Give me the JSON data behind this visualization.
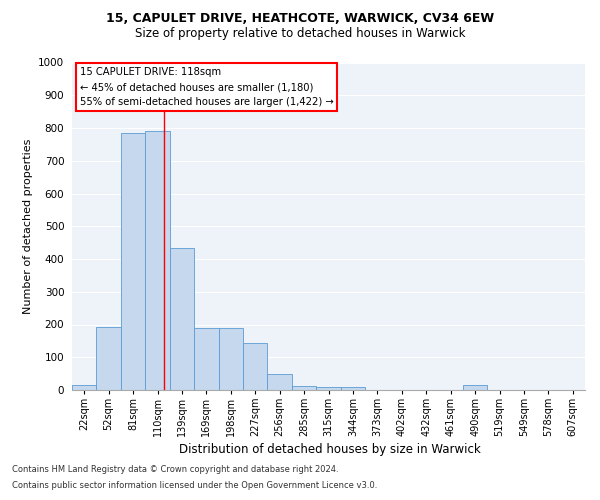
{
  "title_line1": "15, CAPULET DRIVE, HEATHCOTE, WARWICK, CV34 6EW",
  "title_line2": "Size of property relative to detached houses in Warwick",
  "xlabel": "Distribution of detached houses by size in Warwick",
  "ylabel": "Number of detached properties",
  "bar_color": "#c5d8ed",
  "bar_edge_color": "#5b9bd5",
  "categories": [
    "22sqm",
    "52sqm",
    "81sqm",
    "110sqm",
    "139sqm",
    "169sqm",
    "198sqm",
    "227sqm",
    "256sqm",
    "285sqm",
    "315sqm",
    "344sqm",
    "373sqm",
    "402sqm",
    "432sqm",
    "461sqm",
    "490sqm",
    "519sqm",
    "549sqm",
    "578sqm",
    "607sqm"
  ],
  "values": [
    15,
    193,
    785,
    790,
    435,
    190,
    190,
    143,
    48,
    13,
    10,
    10,
    0,
    0,
    0,
    0,
    15,
    0,
    0,
    0,
    0
  ],
  "ylim": [
    0,
    1000
  ],
  "yticks": [
    0,
    100,
    200,
    300,
    400,
    500,
    600,
    700,
    800,
    900,
    1000
  ],
  "annotation_title": "15 CAPULET DRIVE: 118sqm",
  "annotation_line1": "← 45% of detached houses are smaller (1,180)",
  "annotation_line2": "55% of semi-detached houses are larger (1,422) →",
  "footer_line1": "Contains HM Land Registry data © Crown copyright and database right 2024.",
  "footer_line2": "Contains public sector information licensed under the Open Government Licence v3.0.",
  "background_color": "#eef3fa",
  "grid_color": "#ffffff",
  "line_x_index": 3.28
}
